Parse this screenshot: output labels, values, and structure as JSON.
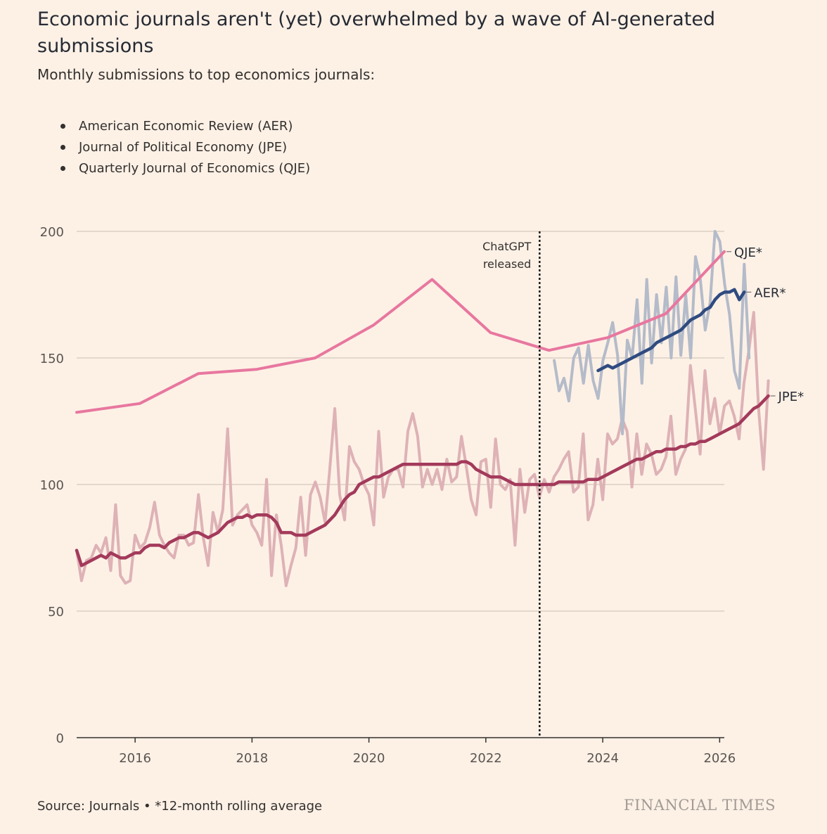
{
  "title": "Economic journals aren't (yet) overwhelmed by a wave of AI-generated submissions",
  "subtitle": "Monthly submissions to top economics journals:",
  "legend": [
    "American Economic Review (AER)",
    "Journal of Political Economy (JPE)",
    "Quarterly Journal of Economics (QJE)"
  ],
  "source": "Source: Journals • *12-month rolling average",
  "brand": "FINANCIAL TIMES",
  "chart_data": {
    "type": "line",
    "ylim": [
      0,
      200
    ],
    "xlim": [
      2015.0,
      2026.08
    ],
    "yticks": [
      0,
      50,
      100,
      150,
      200
    ],
    "xticks": [
      2016,
      2018,
      2020,
      2022,
      2024,
      2026
    ],
    "annotation": {
      "label_line1": "ChatGPT",
      "label_line2": "released",
      "x": 2022.92
    },
    "colors": {
      "qje": "#E8779F",
      "aer_rolling": "#2F4B80",
      "aer_monthly": "#B4BBC9",
      "jpe_rolling": "#A33A5B",
      "jpe_monthly": "#DEB2B6",
      "grid": "#D6CABC",
      "axis": "#33302E"
    },
    "series": [
      {
        "name": "JPE monthly",
        "start": 2015.0,
        "step": 0.08333,
        "values": [
          74,
          62,
          70,
          71,
          76,
          73,
          79,
          66,
          92,
          64,
          61,
          62,
          80,
          75,
          77,
          83,
          93,
          80,
          76,
          73,
          71,
          80,
          80,
          76,
          77,
          96,
          79,
          68,
          89,
          81,
          90,
          122,
          84,
          88,
          90,
          92,
          84,
          81,
          76,
          102,
          64,
          88,
          76,
          60,
          68,
          75,
          95,
          72,
          96,
          101,
          95,
          85,
          107,
          130,
          96,
          86,
          115,
          109,
          106,
          100,
          96,
          84,
          121,
          95,
          103,
          106,
          106,
          99,
          121,
          128,
          119,
          99,
          106,
          100,
          106,
          98,
          110,
          101,
          103,
          119,
          107,
          94,
          88,
          109,
          110,
          91,
          118,
          100,
          98,
          102,
          76,
          106,
          89,
          102,
          104,
          95,
          102,
          97,
          103,
          106,
          110,
          113,
          97,
          99,
          120,
          86,
          92,
          110,
          94,
          120,
          116,
          118,
          126,
          121,
          99,
          120,
          104,
          116,
          112,
          104,
          106,
          111,
          127,
          104,
          110,
          114,
          147,
          130,
          112,
          145,
          124,
          134,
          120,
          131,
          133,
          127,
          118,
          140,
          153,
          168,
          130,
          106,
          141
        ]
      },
      {
        "name": "JPE*",
        "start": 2015.0,
        "step": 0.08333,
        "values": [
          74,
          68,
          69,
          70,
          71,
          72,
          71,
          73,
          72,
          71,
          71,
          72,
          73,
          73,
          75,
          76,
          76,
          76,
          75,
          77,
          78,
          79,
          79,
          80,
          81,
          81,
          80,
          79,
          80,
          81,
          83,
          85,
          86,
          87,
          87,
          88,
          87,
          88,
          88,
          88,
          87,
          85,
          81,
          81,
          81,
          80,
          80,
          80,
          81,
          82,
          83,
          84,
          86,
          88,
          91,
          94,
          96,
          97,
          100,
          101,
          102,
          103,
          103,
          104,
          105,
          106,
          107,
          108,
          108,
          108,
          108,
          108,
          108,
          108,
          108,
          108,
          108,
          108,
          108,
          109,
          109,
          108,
          106,
          105,
          104,
          103,
          103,
          103,
          102,
          101,
          100,
          100,
          100,
          100,
          100,
          100,
          100,
          100,
          100,
          101,
          101,
          101,
          101,
          101,
          101,
          102,
          102,
          102,
          103,
          104,
          105,
          106,
          107,
          108,
          109,
          110,
          110,
          111,
          112,
          113,
          113,
          114,
          114,
          114,
          115,
          115,
          116,
          116,
          117,
          117,
          118,
          119,
          120,
          121,
          122,
          123,
          124,
          126,
          128,
          130,
          131,
          133,
          135
        ]
      },
      {
        "name": "AER monthly",
        "start": 2023.17,
        "step": 0.08333,
        "values": [
          149,
          137,
          142,
          133,
          150,
          154,
          140,
          155,
          141,
          134,
          149,
          156,
          164,
          151,
          120,
          157,
          150,
          173,
          140,
          181,
          148,
          175,
          156,
          178,
          150,
          182,
          151,
          175,
          150,
          190,
          181,
          161,
          172,
          200,
          196,
          179,
          167,
          145,
          138,
          187,
          150
        ]
      },
      {
        "name": "AER*",
        "start": 2023.92,
        "step": 0.08333,
        "values": [
          145,
          146,
          147,
          146,
          147,
          148,
          149,
          150,
          151,
          152,
          153,
          154,
          156,
          157,
          158,
          159,
          160,
          161,
          163,
          165,
          166,
          167,
          169,
          170,
          173,
          175,
          176,
          176,
          177,
          173,
          176
        ]
      },
      {
        "name": "QJE*",
        "points": [
          [
            2015.0,
            128.5
          ],
          [
            2016.08,
            132
          ],
          [
            2017.08,
            143.8
          ],
          [
            2018.08,
            145.5
          ],
          [
            2019.08,
            150
          ],
          [
            2020.08,
            163
          ],
          [
            2021.08,
            181
          ],
          [
            2022.08,
            160
          ],
          [
            2023.08,
            153
          ],
          [
            2024.08,
            158
          ],
          [
            2025.08,
            167.5
          ],
          [
            2026.08,
            192
          ]
        ]
      }
    ],
    "end_labels": [
      "QJE*",
      "AER*",
      "JPE*"
    ]
  }
}
